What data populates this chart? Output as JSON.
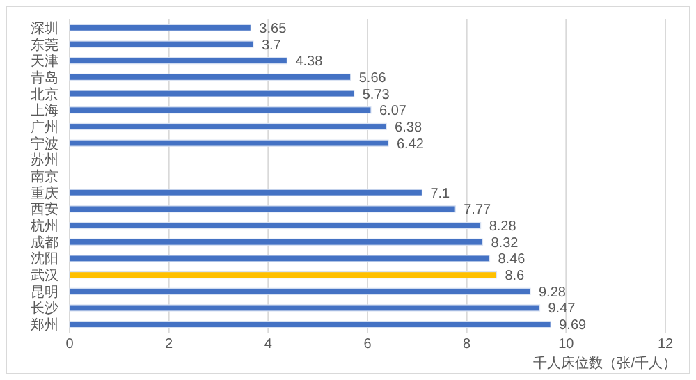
{
  "chart_data": {
    "type": "bar",
    "orientation": "horizontal",
    "categories": [
      "深圳",
      "东莞",
      "天津",
      "青岛",
      "北京",
      "上海",
      "广州",
      "宁波",
      "苏州",
      "南京",
      "重庆",
      "西安",
      "杭州",
      "成都",
      "沈阳",
      "武汉",
      "昆明",
      "长沙",
      "郑州"
    ],
    "values": [
      3.65,
      3.7,
      4.38,
      5.66,
      5.73,
      6.07,
      6.38,
      6.42,
      null,
      null,
      7.1,
      7.77,
      8.28,
      8.32,
      8.46,
      8.6,
      9.28,
      9.47,
      9.69
    ],
    "colors": [
      "#4472c4",
      "#4472c4",
      "#4472c4",
      "#4472c4",
      "#4472c4",
      "#4472c4",
      "#4472c4",
      "#4472c4",
      null,
      null,
      "#4472c4",
      "#4472c4",
      "#4472c4",
      "#4472c4",
      "#4472c4",
      "#ffc000",
      "#4472c4",
      "#4472c4",
      "#4472c4"
    ],
    "xlim": [
      0,
      12
    ],
    "xticks": [
      0,
      2,
      4,
      6,
      8,
      10,
      12
    ],
    "grid": "x",
    "data_labels": true,
    "xlabel": "千人床位数（张/千人）"
  }
}
